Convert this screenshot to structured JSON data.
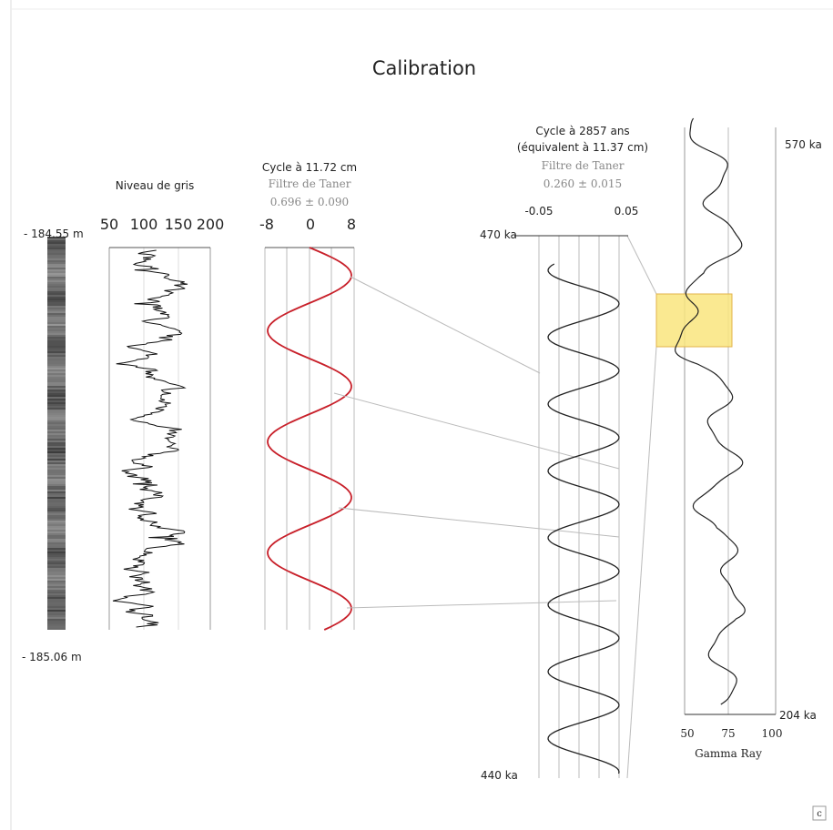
{
  "title": "Calibration",
  "core": {
    "top": "- 184.55 m",
    "bottom": "- 185.06 m"
  },
  "grey": {
    "title": "Niveau de gris",
    "ticks": [
      "50",
      "100",
      "150",
      "200"
    ]
  },
  "cycle1": {
    "title": "Cycle à 11.72 cm",
    "filter": "Filtre de Taner",
    "value": "0.696 ± 0.090",
    "ticks": [
      "-8",
      "0",
      "8"
    ]
  },
  "cycle2": {
    "title": "Cycle à 2857 ans",
    "subtitle": "(équivalent à 11.37 cm)",
    "filter": "Filtre de Taner",
    "value": "0.260 ± 0.015",
    "ticks": [
      "-0.05",
      "0.05"
    ],
    "top": "470 ka",
    "bottom": "440 ka"
  },
  "gamma": {
    "top": "570 ka",
    "bottom": "204 ka",
    "ticks": [
      "50",
      "75",
      "100"
    ],
    "label": "Gamma Ray"
  },
  "panel_label": "c"
}
